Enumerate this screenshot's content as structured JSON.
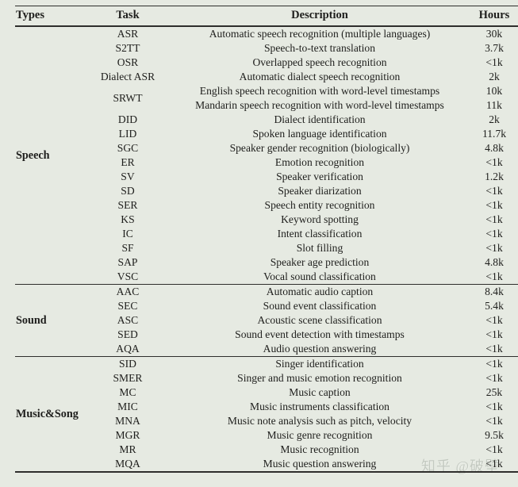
{
  "colors": {
    "background": "#e6eae2",
    "text": "#1e1e1c",
    "rule": "#2e2e2c",
    "watermark": "#c3c9c0"
  },
  "watermark": {
    "text": "知乎 @破壁"
  },
  "table": {
    "columns": [
      "Types",
      "Task",
      "Description",
      "Hours"
    ],
    "sections": [
      {
        "type": "Speech",
        "rows": [
          {
            "task": "ASR",
            "lines": [
              {
                "description": "Automatic speech recognition (multiple languages)",
                "hours": "30k"
              }
            ]
          },
          {
            "task": "S2TT",
            "lines": [
              {
                "description": "Speech-to-text translation",
                "hours": "3.7k"
              }
            ]
          },
          {
            "task": "OSR",
            "lines": [
              {
                "description": "Overlapped speech recognition",
                "hours": "<1k"
              }
            ]
          },
          {
            "task": "Dialect ASR",
            "lines": [
              {
                "description": "Automatic dialect speech recognition",
                "hours": "2k"
              }
            ]
          },
          {
            "task": "SRWT",
            "lines": [
              {
                "description": "English speech recognition with word-level timestamps",
                "hours": "10k"
              },
              {
                "description": "Mandarin speech recognition with word-level timestamps",
                "hours": "11k"
              }
            ]
          },
          {
            "task": "DID",
            "lines": [
              {
                "description": "Dialect identification",
                "hours": "2k"
              }
            ]
          },
          {
            "task": "LID",
            "lines": [
              {
                "description": "Spoken language identification",
                "hours": "11.7k"
              }
            ]
          },
          {
            "task": "SGC",
            "lines": [
              {
                "description": "Speaker gender recognition (biologically)",
                "hours": "4.8k"
              }
            ]
          },
          {
            "task": "ER",
            "lines": [
              {
                "description": "Emotion recognition",
                "hours": "<1k"
              }
            ]
          },
          {
            "task": "SV",
            "lines": [
              {
                "description": "Speaker verification",
                "hours": "1.2k"
              }
            ]
          },
          {
            "task": "SD",
            "lines": [
              {
                "description": "Speaker diarization",
                "hours": "<1k"
              }
            ]
          },
          {
            "task": "SER",
            "lines": [
              {
                "description": "Speech entity recognition",
                "hours": "<1k"
              }
            ]
          },
          {
            "task": "KS",
            "lines": [
              {
                "description": "Keyword spotting",
                "hours": "<1k"
              }
            ]
          },
          {
            "task": "IC",
            "lines": [
              {
                "description": "Intent classification",
                "hours": "<1k"
              }
            ]
          },
          {
            "task": "SF",
            "lines": [
              {
                "description": "Slot filling",
                "hours": "<1k"
              }
            ]
          },
          {
            "task": "SAP",
            "lines": [
              {
                "description": "Speaker age prediction",
                "hours": "4.8k"
              }
            ]
          },
          {
            "task": "VSC",
            "lines": [
              {
                "description": "Vocal sound classification",
                "hours": "<1k"
              }
            ]
          }
        ]
      },
      {
        "type": "Sound",
        "rows": [
          {
            "task": "AAC",
            "lines": [
              {
                "description": "Automatic audio caption",
                "hours": "8.4k"
              }
            ]
          },
          {
            "task": "SEC",
            "lines": [
              {
                "description": "Sound event classification",
                "hours": "5.4k"
              }
            ]
          },
          {
            "task": "ASC",
            "lines": [
              {
                "description": "Acoustic scene classification",
                "hours": "<1k"
              }
            ]
          },
          {
            "task": "SED",
            "lines": [
              {
                "description": "Sound event detection with timestamps",
                "hours": "<1k"
              }
            ]
          },
          {
            "task": "AQA",
            "lines": [
              {
                "description": "Audio question answering",
                "hours": "<1k"
              }
            ]
          }
        ]
      },
      {
        "type": "Music&Song",
        "rows": [
          {
            "task": "SID",
            "lines": [
              {
                "description": "Singer identification",
                "hours": "<1k"
              }
            ]
          },
          {
            "task": "SMER",
            "lines": [
              {
                "description": "Singer and music emotion recognition",
                "hours": "<1k"
              }
            ]
          },
          {
            "task": "MC",
            "lines": [
              {
                "description": "Music caption",
                "hours": "25k"
              }
            ]
          },
          {
            "task": "MIC",
            "lines": [
              {
                "description": "Music instruments classification",
                "hours": "<1k"
              }
            ]
          },
          {
            "task": "MNA",
            "lines": [
              {
                "description": "Music note analysis such as pitch, velocity",
                "hours": "<1k"
              }
            ]
          },
          {
            "task": "MGR",
            "lines": [
              {
                "description": "Music genre recognition",
                "hours": "9.5k"
              }
            ]
          },
          {
            "task": "MR",
            "lines": [
              {
                "description": "Music recognition",
                "hours": "<1k"
              }
            ]
          },
          {
            "task": "MQA",
            "lines": [
              {
                "description": "Music question answering",
                "hours": "<1k"
              }
            ]
          }
        ]
      }
    ]
  }
}
